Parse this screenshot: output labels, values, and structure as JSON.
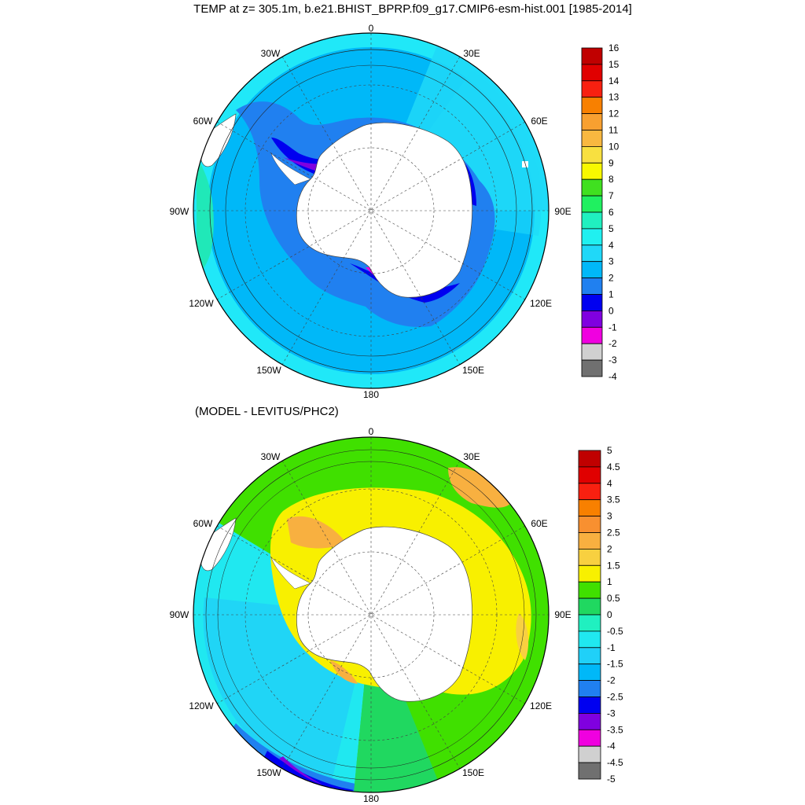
{
  "figure_title": "TEMP at z= 305.1m, b.e21.BHIST_BPRP.f09_g17.CMIP6-esm-hist.001 [1985-2014]",
  "panel2_title": "(MODEL - LEVITUS/PHC2)",
  "lon_labels": [
    "0",
    "30E",
    "60E",
    "90E",
    "120E",
    "150E",
    "180",
    "150W",
    "120W",
    "90W",
    "60W",
    "30W"
  ],
  "colorbar_top": {
    "labels": [
      "16",
      "15",
      "14",
      "13",
      "12",
      "11",
      "10",
      "9",
      "8",
      "7",
      "6",
      "5",
      "4",
      "3",
      "2",
      "1",
      "0",
      "-1",
      "-2",
      "-3",
      "-4"
    ],
    "colors": [
      "#c00000",
      "#e00000",
      "#f82010",
      "#f88000",
      "#f8a030",
      "#f8b840",
      "#f8e040",
      "#f8f800",
      "#40e020",
      "#20f060",
      "#20f0c0",
      "#20f0f0",
      "#20d8f8",
      "#00b8f8",
      "#2080f0",
      "#0000f0",
      "#8000e0",
      "#f000e0",
      "#d0d0d0",
      "#707070"
    ]
  },
  "colorbar_bottom": {
    "labels": [
      "5",
      "4.5",
      "4",
      "3.5",
      "3",
      "2.5",
      "2",
      "1.5",
      "1",
      "0.5",
      "0",
      "-0.5",
      "-1",
      "-1.5",
      "-2",
      "-2.5",
      "-3",
      "-3.5",
      "-4",
      "-4.5",
      "-5"
    ],
    "colors": [
      "#c00000",
      "#e00000",
      "#f82010",
      "#f88000",
      "#f89030",
      "#f8b040",
      "#f8d040",
      "#f8f000",
      "#40e000",
      "#20d860",
      "#20f0c0",
      "#20e8f0",
      "#20d0f8",
      "#00b8f8",
      "#2080f0",
      "#0000f0",
      "#8000e0",
      "#f000e0",
      "#d0d0d0",
      "#707070"
    ]
  }
}
